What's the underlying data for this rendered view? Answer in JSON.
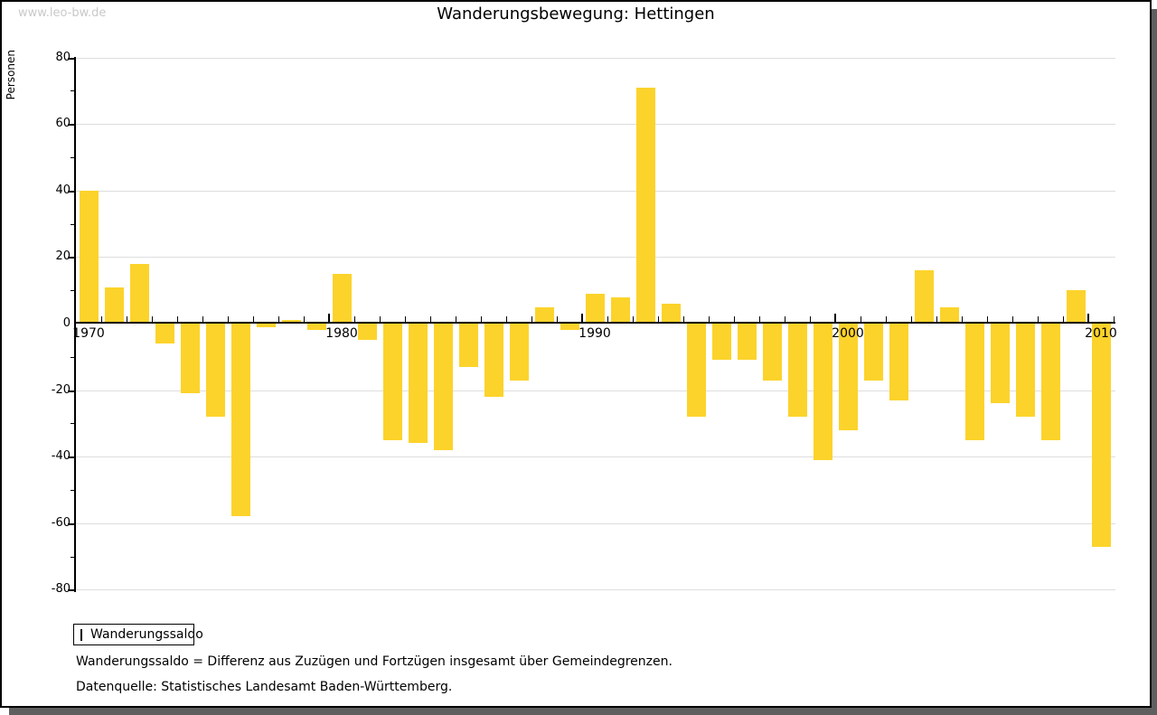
{
  "watermark": "www.leo-bw.de",
  "title": "Wanderungsbewegung: Hettingen",
  "legend": {
    "label": "Wanderungssaldo"
  },
  "footnotes": [
    "Wanderungssaldo = Differenz aus Zuzügen und Fortzügen insgesamt über Gemeindegrenzen.",
    "Datenquelle: Statistisches Landesamt Baden-Württemberg."
  ],
  "colors": {
    "bar": "#fcd32b",
    "gridline": "#dedede",
    "axis": "#000000",
    "watermark": "#c9c9c9",
    "shadow": "#5f5f5f"
  },
  "chart_data": {
    "type": "bar",
    "title": "Wanderungsbewegung: Hettingen",
    "xlabel": "",
    "ylabel": "Personen",
    "series_name": "Wanderungssaldo",
    "years": [
      1970,
      1971,
      1972,
      1973,
      1974,
      1975,
      1976,
      1977,
      1978,
      1979,
      1980,
      1981,
      1982,
      1983,
      1984,
      1985,
      1986,
      1987,
      1988,
      1989,
      1990,
      1991,
      1992,
      1993,
      1994,
      1995,
      1996,
      1997,
      1998,
      1999,
      2000,
      2001,
      2002,
      2003,
      2004,
      2005,
      2006,
      2007,
      2008,
      2009,
      2010
    ],
    "values": [
      40,
      11,
      18,
      -6,
      -21,
      -28,
      -58,
      -1,
      1,
      -2,
      15,
      -5,
      -35,
      -36,
      -38,
      -13,
      -22,
      -17,
      5,
      -2,
      9,
      8,
      71,
      6,
      -28,
      -11,
      -11,
      -17,
      -28,
      -41,
      -32,
      -17,
      -23,
      16,
      5,
      -35,
      -24,
      -28,
      -35,
      10,
      -67
    ],
    "ylim": [
      -80,
      80
    ],
    "ytick_major_step": 20,
    "ytick_minor_step": 10,
    "xticks_labeled": [
      1970,
      1980,
      1990,
      2000,
      2010
    ],
    "grid": true,
    "legend_position": "bottom-left",
    "bar_color": "#fcd32b"
  }
}
